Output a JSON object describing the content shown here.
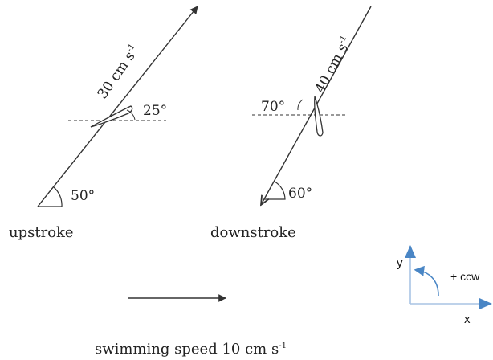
{
  "upstroke": {
    "label": "upstroke",
    "speed_label": "30 cm s",
    "speed_exp": "-1",
    "blade_angle_label": "25°",
    "path_angle_label": "50°"
  },
  "downstroke": {
    "label": "downstroke",
    "speed_label": "40 cm s",
    "speed_exp": "-1",
    "blade_angle_label": "70°",
    "path_angle_label": "60°"
  },
  "swimming": {
    "label": "swimming speed 10 cm s",
    "exp": "-1"
  },
  "axes": {
    "x_label": "x",
    "y_label": "y",
    "rotation_label": "+ ccw",
    "accent_color": "#4a86c5",
    "axis_color": "#a9c4e4"
  }
}
